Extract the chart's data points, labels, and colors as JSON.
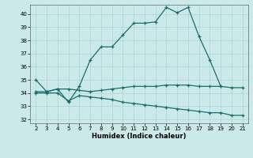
{
  "xlabel": "Humidex (Indice chaleur)",
  "xlim": [
    1.5,
    21.5
  ],
  "ylim": [
    31.7,
    40.7
  ],
  "yticks": [
    32,
    33,
    34,
    35,
    36,
    37,
    38,
    39,
    40
  ],
  "xticks": [
    2,
    3,
    4,
    5,
    6,
    7,
    8,
    9,
    10,
    11,
    12,
    13,
    14,
    15,
    16,
    17,
    18,
    19,
    20,
    21
  ],
  "bg_color": "#cce9e9",
  "grid_color": "#b0d8d8",
  "line_color": "#1a6e6a",
  "series": [
    {
      "x": [
        2,
        3,
        4,
        5,
        6,
        7,
        8,
        9,
        10,
        11,
        12,
        13,
        14,
        15,
        16,
        17,
        18,
        19
      ],
      "y": [
        35.0,
        34.1,
        34.3,
        33.3,
        34.5,
        36.5,
        37.5,
        37.5,
        38.4,
        39.3,
        39.3,
        39.4,
        40.5,
        40.1,
        40.5,
        38.3,
        36.5,
        34.5
      ],
      "marker": true
    },
    {
      "x": [
        2,
        3,
        4,
        5,
        6,
        7,
        8,
        9,
        10,
        11,
        12,
        13,
        14,
        15,
        16,
        17,
        18,
        19,
        20,
        21
      ],
      "y": [
        34.1,
        34.1,
        34.3,
        34.3,
        34.2,
        34.1,
        34.2,
        34.3,
        34.4,
        34.5,
        34.5,
        34.5,
        34.6,
        34.6,
        34.6,
        34.5,
        34.5,
        34.5,
        34.4,
        34.4
      ],
      "marker": true
    },
    {
      "x": [
        2,
        3,
        4,
        5,
        6,
        7,
        8,
        9,
        10,
        11,
        12,
        13,
        14,
        15,
        16,
        17,
        18,
        19,
        20,
        21
      ],
      "y": [
        34.0,
        34.0,
        34.0,
        33.4,
        33.8,
        33.7,
        33.6,
        33.5,
        33.3,
        33.2,
        33.1,
        33.0,
        32.9,
        32.8,
        32.7,
        32.6,
        32.5,
        32.5,
        32.3,
        32.3
      ],
      "marker": true
    }
  ]
}
